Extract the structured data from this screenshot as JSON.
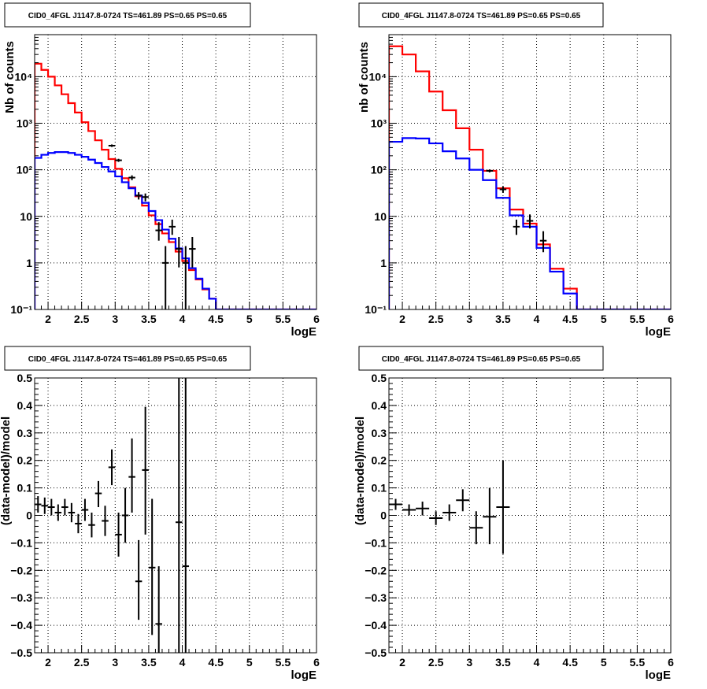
{
  "chart_data": [
    {
      "type": "line",
      "title": "CID0_4FGL J1147.8-0724 TS=461.89 PS=0.65 PS=0.65",
      "xlabel": "logE",
      "ylabel": "Nb of counts",
      "xlim": [
        1.8,
        6.0
      ],
      "ylim": [
        0.1,
        80000
      ],
      "yscale": "log",
      "grid": true,
      "x_ticks": [
        "2",
        "2.5",
        "3",
        "3.5",
        "4",
        "4.5",
        "5",
        "5.5",
        "6"
      ],
      "y_ticks": [
        "10⁻¹",
        "1",
        "10",
        "10²",
        "10³",
        "10⁴"
      ],
      "bin_edges": [
        1.8,
        1.9,
        2.0,
        2.1,
        2.2,
        2.3,
        2.4,
        2.5,
        2.6,
        2.7,
        2.8,
        2.9,
        3.0,
        3.1,
        3.2,
        3.3,
        3.4,
        3.5,
        3.6,
        3.7,
        3.8,
        3.9,
        4.0,
        4.1,
        4.2,
        4.3,
        4.4,
        4.5,
        4.6,
        4.7,
        4.8,
        4.9,
        5.0,
        5.1,
        5.2,
        5.3,
        5.4,
        5.5,
        5.6,
        5.7,
        5.8,
        5.9,
        6.0
      ],
      "series": [
        {
          "color": "#ff0000",
          "values": [
            19000,
            14000,
            10000,
            6500,
            4200,
            2700,
            1700,
            1050,
            680,
            430,
            270,
            170,
            105,
            66,
            42,
            27,
            17,
            10.5,
            6.8,
            4.3,
            2.8,
            1.75,
            1.1,
            0.7,
            0.44,
            0.27,
            0.17,
            0.1,
            0.1,
            0.1,
            0.1,
            0.1,
            0.1,
            0.1,
            0.1,
            0.1,
            0.1,
            0.1,
            0.1,
            0.1,
            0.1,
            0.1
          ]
        },
        {
          "color": "#0000ff",
          "values": [
            180,
            210,
            230,
            240,
            240,
            230,
            210,
            190,
            165,
            140,
            115,
            92,
            72,
            54,
            40,
            28,
            19.5,
            13,
            8.3,
            5.2,
            3.3,
            2.05,
            1.25,
            0.77,
            0.46,
            0.28,
            0.17,
            0.1,
            0.1,
            0.1,
            0.1,
            0.1,
            0.1,
            0.1,
            0.1,
            0.1,
            0.1,
            0.1,
            0.1,
            0.1,
            0.1,
            0.1
          ]
        }
      ],
      "data_points": [
        {
          "x": 2.95,
          "y": 330,
          "ylo": 310,
          "yhi": 350
        },
        {
          "x": 3.05,
          "y": 160,
          "ylo": 148,
          "yhi": 172
        },
        {
          "x": 3.25,
          "y": 68,
          "ylo": 60,
          "yhi": 76
        },
        {
          "x": 3.35,
          "y": 28,
          "ylo": 23,
          "yhi": 33
        },
        {
          "x": 3.45,
          "y": 26,
          "ylo": 21,
          "yhi": 31
        },
        {
          "x": 3.65,
          "y": 5,
          "ylo": 3,
          "yhi": 7.5
        },
        {
          "x": 3.75,
          "y": 1,
          "ylo": 0.1,
          "yhi": 2.3
        },
        {
          "x": 3.85,
          "y": 6,
          "ylo": 4,
          "yhi": 8.5
        },
        {
          "x": 3.95,
          "y": 2,
          "ylo": 0.8,
          "yhi": 3.6
        },
        {
          "x": 4.05,
          "y": 1,
          "ylo": 0.1,
          "yhi": 2.3
        },
        {
          "x": 4.15,
          "y": 2,
          "ylo": 0.8,
          "yhi": 3.6
        }
      ]
    },
    {
      "type": "line",
      "title": "CID0_4FGL J1147.8-0724 TS=461.89 PS=0.65 PS=0.65",
      "xlabel": "logE",
      "ylabel": "nb of counts",
      "xlim": [
        1.8,
        6.0
      ],
      "ylim": [
        0.1,
        80000
      ],
      "yscale": "log",
      "grid": true,
      "x_ticks": [
        "2",
        "2.5",
        "3",
        "3.5",
        "4",
        "4.5",
        "5",
        "5.5",
        "6"
      ],
      "y_ticks": [
        "10⁻¹",
        "1",
        "10",
        "10²",
        "10³",
        "10⁴"
      ],
      "bin_edges": [
        1.8,
        2.0,
        2.2,
        2.4,
        2.6,
        2.8,
        3.0,
        3.2,
        3.4,
        3.6,
        3.8,
        4.0,
        4.2,
        4.4,
        4.6,
        4.8,
        5.0,
        5.2,
        5.4,
        5.6,
        5.8,
        6.0
      ],
      "series": [
        {
          "color": "#ff0000",
          "values": [
            45000,
            30000,
            13000,
            4800,
            1900,
            780,
            270,
            95,
            40,
            14,
            7,
            2.5,
            0.75,
            0.28,
            0.1,
            0.1,
            0.1,
            0.1,
            0.1,
            0.1,
            0.1
          ]
        },
        {
          "color": "#0000ff",
          "values": [
            400,
            480,
            470,
            370,
            250,
            175,
            100,
            60,
            25,
            10.5,
            6,
            2.1,
            0.65,
            0.22,
            0.1,
            0.1,
            0.1,
            0.1,
            0.1,
            0.1,
            0.1
          ]
        }
      ],
      "data_points": [
        {
          "x": 3.3,
          "y": 95,
          "ylo": 88,
          "yhi": 102
        },
        {
          "x": 3.5,
          "y": 38,
          "ylo": 32,
          "yhi": 44
        },
        {
          "x": 3.7,
          "y": 6,
          "ylo": 4,
          "yhi": 8.5
        },
        {
          "x": 3.9,
          "y": 8,
          "ylo": 5.5,
          "yhi": 11
        },
        {
          "x": 4.1,
          "y": 3,
          "ylo": 1.7,
          "yhi": 4.8
        }
      ]
    },
    {
      "type": "scatter",
      "title": "CID0_4FGL J1147.8-0724 TS=461.89 PS=0.65 PS=0.65",
      "xlabel": "logE",
      "ylabel": "(data-model)/model",
      "xlim": [
        1.8,
        6.0
      ],
      "ylim": [
        -0.5,
        0.5
      ],
      "grid": true,
      "x_ticks": [
        "2",
        "2.5",
        "3",
        "3.5",
        "4",
        "4.5",
        "5",
        "5.5",
        "6"
      ],
      "y_ticks": [
        "−0.5",
        "−0.4",
        "−0.3",
        "−0.2",
        "−0.1",
        "0",
        "0.1",
        "0.2",
        "0.3",
        "0.4",
        "0.5"
      ],
      "data_points": [
        {
          "x": 1.85,
          "y": 0.04,
          "ylo": 0.01,
          "yhi": 0.07
        },
        {
          "x": 1.95,
          "y": 0.035,
          "ylo": 0.005,
          "yhi": 0.065
        },
        {
          "x": 2.05,
          "y": 0.03,
          "ylo": 0.0,
          "yhi": 0.06
        },
        {
          "x": 2.15,
          "y": 0.01,
          "ylo": -0.02,
          "yhi": 0.04
        },
        {
          "x": 2.25,
          "y": 0.03,
          "ylo": 0.0,
          "yhi": 0.06
        },
        {
          "x": 2.35,
          "y": 0.01,
          "ylo": -0.025,
          "yhi": 0.045
        },
        {
          "x": 2.45,
          "y": -0.03,
          "ylo": -0.065,
          "yhi": 0.005
        },
        {
          "x": 2.55,
          "y": 0.02,
          "ylo": -0.02,
          "yhi": 0.06
        },
        {
          "x": 2.65,
          "y": -0.035,
          "ylo": -0.08,
          "yhi": 0.01
        },
        {
          "x": 2.75,
          "y": 0.08,
          "ylo": 0.03,
          "yhi": 0.125
        },
        {
          "x": 2.85,
          "y": -0.02,
          "ylo": -0.075,
          "yhi": 0.035
        },
        {
          "x": 2.95,
          "y": 0.175,
          "ylo": 0.11,
          "yhi": 0.24
        },
        {
          "x": 3.05,
          "y": -0.07,
          "ylo": -0.15,
          "yhi": 0.01
        },
        {
          "x": 3.15,
          "y": 0.0,
          "ylo": -0.1,
          "yhi": 0.1
        },
        {
          "x": 3.25,
          "y": 0.14,
          "ylo": 0.01,
          "yhi": 0.28
        },
        {
          "x": 3.35,
          "y": -0.24,
          "ylo": -0.38,
          "yhi": -0.09
        },
        {
          "x": 3.45,
          "y": 0.165,
          "ylo": -0.07,
          "yhi": 0.395
        },
        {
          "x": 3.55,
          "y": -0.19,
          "ylo": -0.435,
          "yhi": 0.06
        },
        {
          "x": 3.65,
          "y": -0.395,
          "ylo": -0.5,
          "yhi": -0.185
        },
        {
          "x": 3.95,
          "y": -0.025,
          "ylo": -0.5,
          "yhi": 0.5
        },
        {
          "x": 4.05,
          "y": -0.185,
          "ylo": -0.5,
          "yhi": 0.5
        }
      ]
    },
    {
      "type": "scatter",
      "title": "CID0_4FGL J1147.8-0724 TS=461.89 PS=0.65 PS=0.65",
      "xlabel": "logE",
      "ylabel": "(data-model)/model",
      "xlim": [
        1.8,
        6.0
      ],
      "ylim": [
        -0.5,
        0.5
      ],
      "grid": true,
      "x_ticks": [
        "2",
        "2.5",
        "3",
        "3.5",
        "4",
        "4.5",
        "5",
        "5.5",
        "6"
      ],
      "y_ticks": [
        "−0.5",
        "−0.4",
        "−0.3",
        "−0.2",
        "−0.1",
        "0",
        "0.1",
        "0.2",
        "0.3",
        "0.4",
        "0.5"
      ],
      "data_points": [
        {
          "x": 1.9,
          "y": 0.04,
          "ylo": 0.02,
          "yhi": 0.06
        },
        {
          "x": 2.1,
          "y": 0.02,
          "ylo": 0.0,
          "yhi": 0.04
        },
        {
          "x": 2.3,
          "y": 0.025,
          "ylo": 0.0,
          "yhi": 0.05
        },
        {
          "x": 2.5,
          "y": -0.01,
          "ylo": -0.035,
          "yhi": 0.015
        },
        {
          "x": 2.7,
          "y": 0.01,
          "ylo": -0.02,
          "yhi": 0.04
        },
        {
          "x": 2.9,
          "y": 0.055,
          "ylo": 0.015,
          "yhi": 0.095
        },
        {
          "x": 3.1,
          "y": -0.045,
          "ylo": -0.105,
          "yhi": 0.015
        },
        {
          "x": 3.3,
          "y": -0.005,
          "ylo": -0.105,
          "yhi": 0.1
        },
        {
          "x": 3.5,
          "y": 0.03,
          "ylo": -0.14,
          "yhi": 0.2
        }
      ]
    }
  ]
}
